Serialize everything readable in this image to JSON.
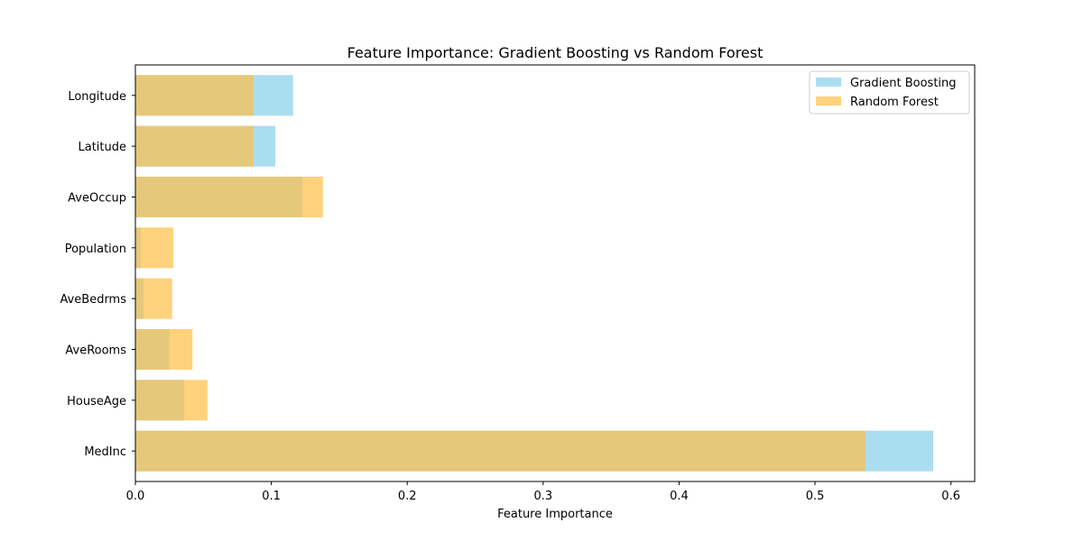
{
  "chart_data": {
    "type": "bar",
    "orientation": "horizontal",
    "title": "Feature Importance: Gradient Boosting vs Random Forest",
    "xlabel": "Feature Importance",
    "ylabel": "",
    "categories": [
      "MedInc",
      "HouseAge",
      "AveRooms",
      "AveBedrms",
      "Population",
      "AveOccup",
      "Latitude",
      "Longitude"
    ],
    "series": [
      {
        "name": "Gradient Boosting",
        "color": "#87ceeb",
        "opacity": 0.7,
        "values": [
          0.587,
          0.036,
          0.025,
          0.006,
          0.004,
          0.123,
          0.103,
          0.116
        ]
      },
      {
        "name": "Random Forest",
        "color": "#ffbf47",
        "opacity": 0.7,
        "values": [
          0.537,
          0.053,
          0.042,
          0.027,
          0.028,
          0.138,
          0.087,
          0.087
        ]
      }
    ],
    "xlim": [
      0,
      0.6175
    ],
    "xticks": [
      0.0,
      0.1,
      0.2,
      0.3,
      0.4,
      0.5,
      0.6
    ],
    "xtick_labels": [
      "0.0",
      "0.1",
      "0.2",
      "0.3",
      "0.4",
      "0.5",
      "0.6"
    ],
    "legend_position": "top-right",
    "grid": false
  }
}
